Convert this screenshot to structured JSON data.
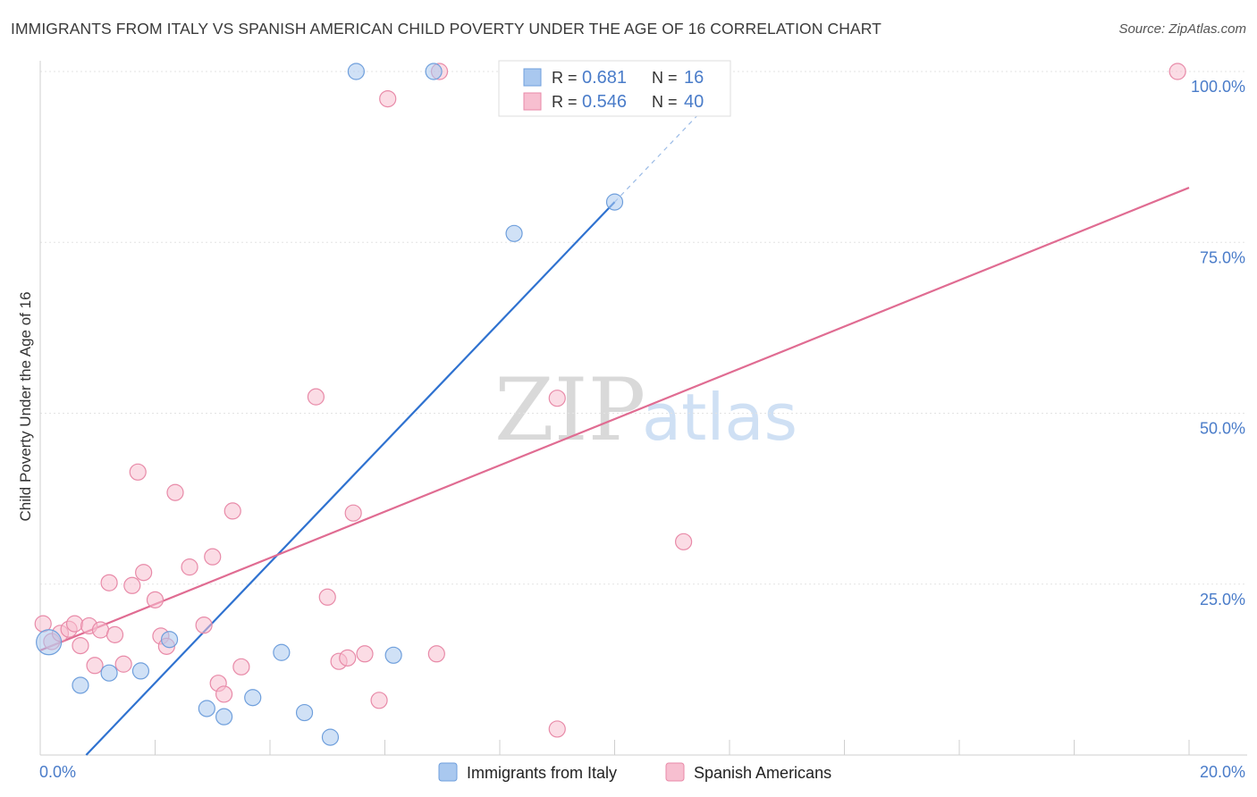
{
  "title": "IMMIGRANTS FROM ITALY VS SPANISH AMERICAN CHILD POVERTY UNDER THE AGE OF 16 CORRELATION CHART",
  "source": "Source: ZipAtlas.com",
  "watermark": {
    "zip": "ZIP",
    "atlas": "atlas"
  },
  "chart_data": {
    "type": "scatter",
    "title": "IMMIGRANTS FROM ITALY VS SPANISH AMERICAN CHILD POVERTY UNDER THE AGE OF 16 CORRELATION CHART",
    "xlabel": "",
    "ylabel": "Child Poverty Under the Age of 16",
    "xlim": [
      0,
      20
    ],
    "ylim": [
      0,
      100
    ],
    "x_tick_labels": [
      "0.0%",
      "20.0%"
    ],
    "y_ticks": [
      25,
      50,
      75,
      100
    ],
    "y_tick_labels": [
      "25.0%",
      "50.0%",
      "75.0%",
      "100.0%"
    ],
    "grid": true,
    "legend_position": "bottom",
    "stats_box": [
      {
        "r_label": "R =",
        "r_value": "0.681",
        "n_label": "N =",
        "n_value": "16"
      },
      {
        "r_label": "R =",
        "r_value": "0.546",
        "n_label": "N =",
        "n_value": "40"
      }
    ],
    "series": [
      {
        "name": "Immigrants from Italy",
        "color": "#a9c8ef",
        "stroke": "#6f9fdc",
        "line_color": "#2f72d0",
        "points": [
          {
            "x": 0.15,
            "y": 16.5,
            "big": true
          },
          {
            "x": 0.7,
            "y": 10.2
          },
          {
            "x": 1.2,
            "y": 12.0
          },
          {
            "x": 1.75,
            "y": 12.3
          },
          {
            "x": 2.25,
            "y": 16.9
          },
          {
            "x": 2.9,
            "y": 6.8
          },
          {
            "x": 3.2,
            "y": 5.6
          },
          {
            "x": 3.7,
            "y": 8.4
          },
          {
            "x": 4.2,
            "y": 15.0
          },
          {
            "x": 4.6,
            "y": 6.2
          },
          {
            "x": 5.05,
            "y": 2.6
          },
          {
            "x": 5.5,
            "y": 100.0
          },
          {
            "x": 6.15,
            "y": 14.6
          },
          {
            "x": 6.85,
            "y": 100.0
          },
          {
            "x": 8.25,
            "y": 76.3
          },
          {
            "x": 10.0,
            "y": 80.9
          }
        ],
        "trend": {
          "x0": 0.8,
          "y0": 0.0,
          "x1": 10.0,
          "y1": 80.9,
          "x_dash_end": 12.0
        }
      },
      {
        "name": "Spanish Americans",
        "color": "#f7bfd0",
        "stroke": "#e88aa8",
        "line_color": "#e06c92",
        "points": [
          {
            "x": 0.05,
            "y": 19.2
          },
          {
            "x": 0.2,
            "y": 16.6
          },
          {
            "x": 0.35,
            "y": 17.8
          },
          {
            "x": 0.5,
            "y": 18.4
          },
          {
            "x": 0.6,
            "y": 19.2
          },
          {
            "x": 0.7,
            "y": 16.0
          },
          {
            "x": 0.85,
            "y": 18.9
          },
          {
            "x": 0.95,
            "y": 13.1
          },
          {
            "x": 1.05,
            "y": 18.3
          },
          {
            "x": 1.2,
            "y": 25.2
          },
          {
            "x": 1.3,
            "y": 17.6
          },
          {
            "x": 1.45,
            "y": 13.3
          },
          {
            "x": 1.6,
            "y": 24.8
          },
          {
            "x": 1.7,
            "y": 41.4
          },
          {
            "x": 1.8,
            "y": 26.7
          },
          {
            "x": 2.0,
            "y": 22.7
          },
          {
            "x": 2.1,
            "y": 17.4
          },
          {
            "x": 2.2,
            "y": 15.9
          },
          {
            "x": 2.35,
            "y": 38.4
          },
          {
            "x": 2.6,
            "y": 27.5
          },
          {
            "x": 2.85,
            "y": 19.0
          },
          {
            "x": 3.0,
            "y": 29.0
          },
          {
            "x": 3.1,
            "y": 10.5
          },
          {
            "x": 3.2,
            "y": 8.9
          },
          {
            "x": 3.35,
            "y": 35.7
          },
          {
            "x": 3.5,
            "y": 12.9
          },
          {
            "x": 4.8,
            "y": 52.4
          },
          {
            "x": 5.0,
            "y": 23.1
          },
          {
            "x": 5.2,
            "y": 13.7
          },
          {
            "x": 5.35,
            "y": 14.2
          },
          {
            "x": 5.45,
            "y": 35.4
          },
          {
            "x": 5.65,
            "y": 14.8
          },
          {
            "x": 5.9,
            "y": 8.0
          },
          {
            "x": 6.05,
            "y": 96.0
          },
          {
            "x": 6.95,
            "y": 100.0
          },
          {
            "x": 6.9,
            "y": 14.8
          },
          {
            "x": 9.0,
            "y": 52.2
          },
          {
            "x": 9.0,
            "y": 3.8
          },
          {
            "x": 11.2,
            "y": 31.2
          },
          {
            "x": 19.8,
            "y": 100.0
          }
        ],
        "trend": {
          "x0": 0.0,
          "y0": 15.3,
          "x1": 20.0,
          "y1": 83.0
        }
      }
    ]
  }
}
